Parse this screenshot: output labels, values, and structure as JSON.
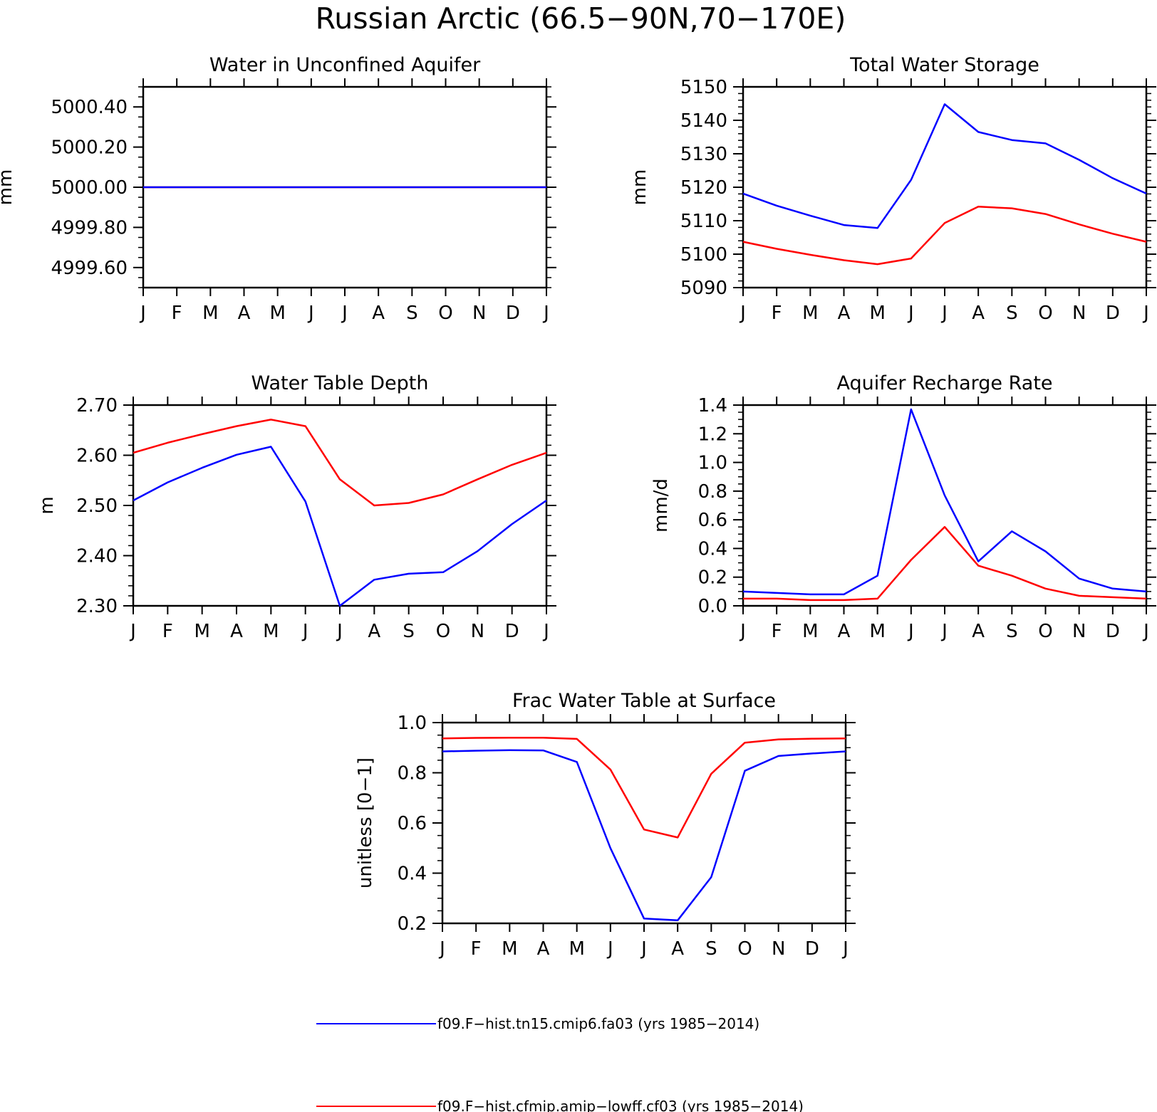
{
  "title": "Russian Arctic (66.5−90N,70−170E)",
  "colors": {
    "blue": "#0000ff",
    "red": "#ff0000",
    "axis": "#000000"
  },
  "legend": {
    "placement": "bottom-center",
    "entries": [
      {
        "label": "f09.F−hist.tn15.cmip6.fa03 (yrs 1985−2014)",
        "color": "#0000ff"
      },
      {
        "label": "f09.F−hist.cfmip.amip−lowff.cf03 (yrs 1985−2014)",
        "color": "#ff0000"
      }
    ]
  },
  "chart_data": [
    {
      "type": "line",
      "title": "Water in Unconfined Aquifer",
      "ylabel": "mm",
      "categories": [
        "J",
        "F",
        "M",
        "A",
        "M",
        "J",
        "J",
        "A",
        "S",
        "O",
        "N",
        "D",
        "J"
      ],
      "ylim": [
        4999.5,
        5000.5
      ],
      "yticks": [
        4999.6,
        4999.8,
        5000.0,
        5000.2,
        5000.4
      ],
      "ytick_labels": [
        "4999.60",
        "4999.80",
        "5000.00",
        "5000.20",
        "5000.40"
      ],
      "yminor": 0.05,
      "series": [
        {
          "color": "#0000ff",
          "values": [
            5000.0,
            5000.0,
            5000.0,
            5000.0,
            5000.0,
            5000.0,
            5000.0,
            5000.0,
            5000.0,
            5000.0,
            5000.0,
            5000.0,
            5000.0
          ]
        },
        {
          "color": "#ff0000",
          "values": [
            5000.0,
            5000.0,
            5000.0,
            5000.0,
            5000.0,
            5000.0,
            5000.0,
            5000.0,
            5000.0,
            5000.0,
            5000.0,
            5000.0,
            5000.0
          ]
        }
      ]
    },
    {
      "type": "line",
      "title": "Total Water Storage",
      "ylabel": "mm",
      "categories": [
        "J",
        "F",
        "M",
        "A",
        "M",
        "J",
        "J",
        "A",
        "S",
        "O",
        "N",
        "D",
        "J"
      ],
      "ylim": [
        5090,
        5150
      ],
      "yticks": [
        5090,
        5100,
        5110,
        5120,
        5130,
        5140,
        5150
      ],
      "ytick_labels": [
        "5090",
        "5100",
        "5110",
        "5120",
        "5130",
        "5140",
        "5150"
      ],
      "yminor": 2,
      "series": [
        {
          "color": "#0000ff",
          "values": [
            5118.1,
            5114.5,
            5111.5,
            5108.7,
            5107.8,
            5122.2,
            5144.8,
            5136.5,
            5134.1,
            5133.1,
            5128.2,
            5122.7,
            5118.1
          ]
        },
        {
          "color": "#ff0000",
          "values": [
            5103.7,
            5101.6,
            5099.8,
            5098.2,
            5097.0,
            5098.7,
            5109.3,
            5114.2,
            5113.7,
            5112.0,
            5108.9,
            5106.1,
            5103.7
          ]
        }
      ]
    },
    {
      "type": "line",
      "title": "Water Table Depth",
      "ylabel": "m",
      "categories": [
        "J",
        "F",
        "M",
        "A",
        "M",
        "J",
        "J",
        "A",
        "S",
        "O",
        "N",
        "D",
        "J"
      ],
      "ylim": [
        2.3,
        2.7
      ],
      "yticks": [
        2.3,
        2.4,
        2.5,
        2.6,
        2.7
      ],
      "ytick_labels": [
        "2.30",
        "2.40",
        "2.50",
        "2.60",
        "2.70"
      ],
      "yminor": 0.02,
      "series": [
        {
          "color": "#0000ff",
          "values": [
            2.51,
            2.546,
            2.575,
            2.601,
            2.617,
            2.508,
            2.3,
            2.352,
            2.364,
            2.367,
            2.409,
            2.463,
            2.51
          ]
        },
        {
          "color": "#ff0000",
          "values": [
            2.605,
            2.625,
            2.642,
            2.658,
            2.671,
            2.658,
            2.552,
            2.5,
            2.505,
            2.522,
            2.552,
            2.581,
            2.605
          ]
        }
      ]
    },
    {
      "type": "line",
      "title": "Aquifer Recharge Rate",
      "ylabel": "mm/d",
      "categories": [
        "J",
        "F",
        "M",
        "A",
        "M",
        "J",
        "J",
        "A",
        "S",
        "O",
        "N",
        "D",
        "J"
      ],
      "ylim": [
        0.0,
        1.4
      ],
      "yticks": [
        0.0,
        0.2,
        0.4,
        0.6,
        0.8,
        1.0,
        1.2,
        1.4
      ],
      "ytick_labels": [
        "0.0",
        "0.2",
        "0.4",
        "0.6",
        "0.8",
        "1.0",
        "1.2",
        "1.4"
      ],
      "yminor": 0.05,
      "series": [
        {
          "color": "#0000ff",
          "values": [
            0.1,
            0.09,
            0.08,
            0.08,
            0.21,
            1.37,
            0.77,
            0.31,
            0.52,
            0.38,
            0.19,
            0.12,
            0.1
          ]
        },
        {
          "color": "#ff0000",
          "values": [
            0.05,
            0.05,
            0.04,
            0.04,
            0.05,
            0.32,
            0.55,
            0.28,
            0.21,
            0.12,
            0.07,
            0.06,
            0.05
          ]
        }
      ]
    },
    {
      "type": "line",
      "title": "Frac Water Table at Surface",
      "ylabel": "unitless [0−1]",
      "categories": [
        "J",
        "F",
        "M",
        "A",
        "M",
        "J",
        "J",
        "A",
        "S",
        "O",
        "N",
        "D",
        "J"
      ],
      "ylim": [
        0.2,
        1.0
      ],
      "yticks": [
        0.2,
        0.4,
        0.6,
        0.8,
        1.0
      ],
      "ytick_labels": [
        "0.2",
        "0.4",
        "0.6",
        "0.8",
        "1.0"
      ],
      "yminor": 0.05,
      "series": [
        {
          "color": "#0000ff",
          "values": [
            0.885,
            0.888,
            0.89,
            0.889,
            0.843,
            0.5,
            0.219,
            0.212,
            0.384,
            0.808,
            0.867,
            0.877,
            0.885
          ]
        },
        {
          "color": "#ff0000",
          "values": [
            0.937,
            0.939,
            0.94,
            0.94,
            0.935,
            0.813,
            0.574,
            0.542,
            0.796,
            0.92,
            0.933,
            0.936,
            0.937
          ]
        }
      ]
    }
  ]
}
